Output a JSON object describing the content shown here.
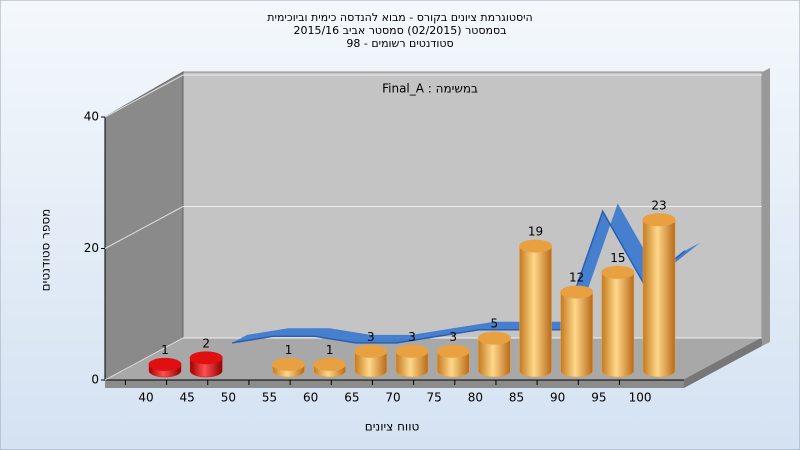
{
  "chart_data": {
    "type": "bar3d",
    "title": "היסטוגרמת ציונים בקורס - מבוא להנדסה כימית וביוכימית",
    "subtitle": "בסמסטר  (02/2015)  סמסטר אביב 2015/16",
    "subtitle2": "סטודנטים רשומים - 98",
    "annotation": "במשימה : Final_A",
    "x_label": "טווח ציונים",
    "y_label": "מספר סטודנטים",
    "categories": [
      "40",
      "45",
      "50",
      "55",
      "60",
      "65",
      "70",
      "75",
      "80",
      "85",
      "90",
      "95",
      "100"
    ],
    "values": [
      1,
      2,
      null,
      1,
      1,
      3,
      3,
      3,
      5,
      19,
      12,
      15,
      23
    ],
    "colors": [
      "#e01010",
      "#e01010",
      "#e01010",
      "#e8a040",
      "#e8a040",
      "#e8a040",
      "#e8a040",
      "#e8a040",
      "#e8a040",
      "#e8a040",
      "#e8a040",
      "#e8a040",
      "#e8a040"
    ],
    "line_values": [
      null,
      2,
      3,
      3,
      2,
      2,
      3,
      4,
      4,
      4,
      22,
      11,
      16
    ],
    "line_color": "#3a78d0",
    "ylim": [
      0,
      40
    ],
    "yticks": [
      0,
      20,
      40
    ],
    "grid": true
  }
}
